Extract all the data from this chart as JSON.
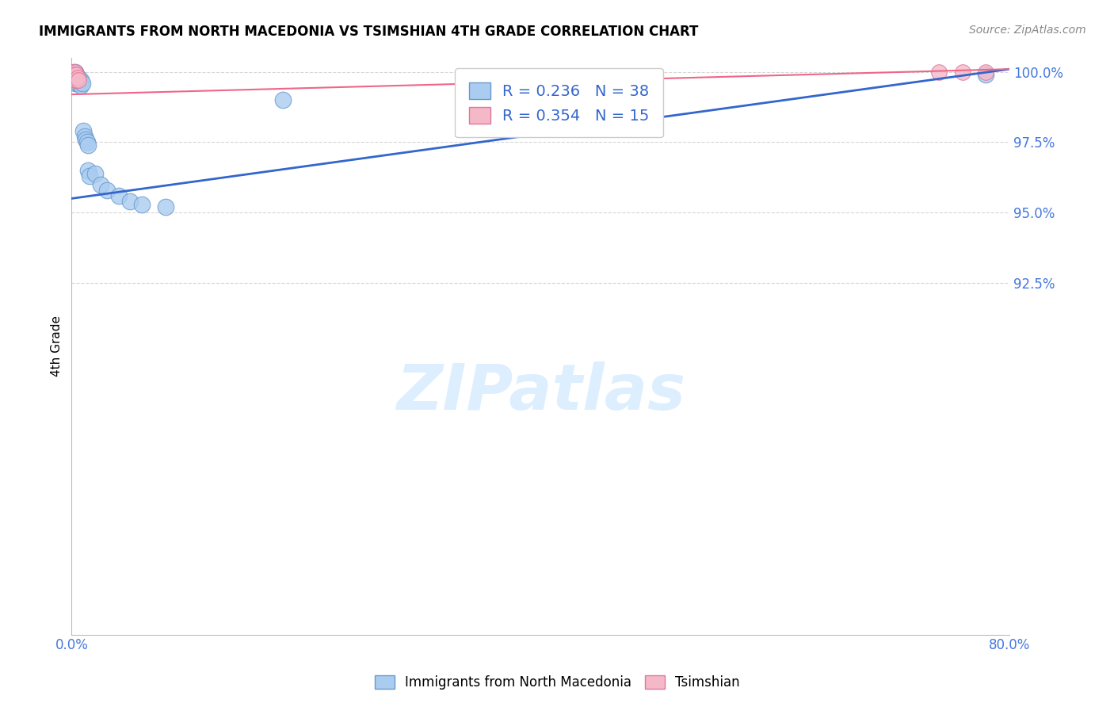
{
  "title": "IMMIGRANTS FROM NORTH MACEDONIA VS TSIMSHIAN 4TH GRADE CORRELATION CHART",
  "source": "Source: ZipAtlas.com",
  "xlabel_label": "Immigrants from North Macedonia",
  "ylabel_label": "4th Grade",
  "xlim": [
    0.0,
    0.8
  ],
  "ylim": [
    0.8,
    1.005
  ],
  "blue_R": 0.236,
  "blue_N": 38,
  "pink_R": 0.354,
  "pink_N": 15,
  "blue_color": "#aaccf0",
  "blue_edge": "#6699cc",
  "pink_color": "#f5b8c8",
  "pink_edge": "#dd7799",
  "blue_line_color": "#3366cc",
  "pink_line_color": "#ee6688",
  "watermark_color": "#ddeeff",
  "legend_R_color": "#3366cc",
  "legend_N_color": "#ee4444",
  "ytick_color": "#4477dd",
  "xtick_color": "#4477dd",
  "blue_scatter_x": [
    0.001,
    0.001,
    0.002,
    0.002,
    0.002,
    0.002,
    0.003,
    0.003,
    0.003,
    0.003,
    0.003,
    0.004,
    0.004,
    0.005,
    0.005,
    0.005,
    0.006,
    0.006,
    0.007,
    0.008,
    0.008,
    0.009,
    0.01,
    0.011,
    0.012,
    0.013,
    0.014,
    0.014,
    0.015,
    0.02,
    0.025,
    0.03,
    0.04,
    0.05,
    0.06,
    0.08,
    0.18,
    0.78
  ],
  "blue_scatter_y": [
    0.998,
    0.997,
    1.0,
    0.999,
    0.998,
    0.997,
    1.0,
    0.999,
    0.998,
    0.997,
    0.996,
    0.999,
    0.997,
    0.998,
    0.997,
    0.996,
    0.998,
    0.997,
    0.996,
    0.997,
    0.995,
    0.996,
    0.979,
    0.977,
    0.976,
    0.975,
    0.974,
    0.965,
    0.963,
    0.964,
    0.96,
    0.958,
    0.956,
    0.954,
    0.953,
    0.952,
    0.99,
    0.999
  ],
  "pink_scatter_x": [
    0.001,
    0.001,
    0.002,
    0.002,
    0.002,
    0.003,
    0.003,
    0.003,
    0.004,
    0.004,
    0.005,
    0.006,
    0.74,
    0.76,
    0.78
  ],
  "pink_scatter_y": [
    1.0,
    0.999,
    1.0,
    0.999,
    0.998,
    1.0,
    0.999,
    0.997,
    0.999,
    0.997,
    0.998,
    0.997,
    1.0,
    1.0,
    1.0
  ],
  "blue_line_x0": 0.0,
  "blue_line_x1": 0.8,
  "blue_line_y0": 0.955,
  "blue_line_y1": 1.001,
  "pink_line_x0": 0.0,
  "pink_line_x1": 0.8,
  "pink_line_y0": 0.992,
  "pink_line_y1": 1.001
}
